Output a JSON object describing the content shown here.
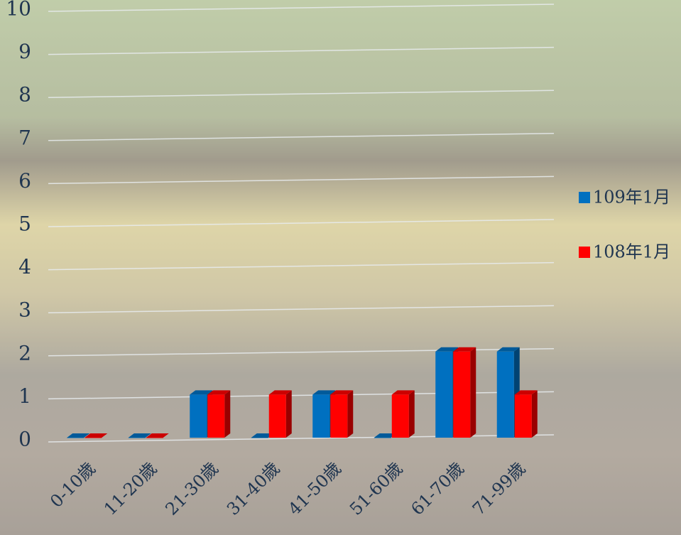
{
  "chart_data": {
    "type": "bar3d",
    "categories": [
      "0-10歲",
      "11-20歲",
      "21-30歲",
      "31-40歲",
      "41-50歲",
      "51-60歲",
      "61-70歲",
      "71-99歲"
    ],
    "series": [
      {
        "name": "109年1月",
        "color": "#0070c0",
        "values": [
          0,
          0,
          1,
          0,
          1,
          0,
          2,
          2
        ]
      },
      {
        "name": "108年1月",
        "color": "#ff0000",
        "values": [
          0,
          0,
          1,
          1,
          1,
          1,
          2,
          1
        ]
      }
    ],
    "ylim": [
      0,
      10
    ],
    "yticks": [
      0,
      1,
      2,
      3,
      4,
      5,
      6,
      7,
      8,
      9,
      10
    ],
    "grid": true
  }
}
